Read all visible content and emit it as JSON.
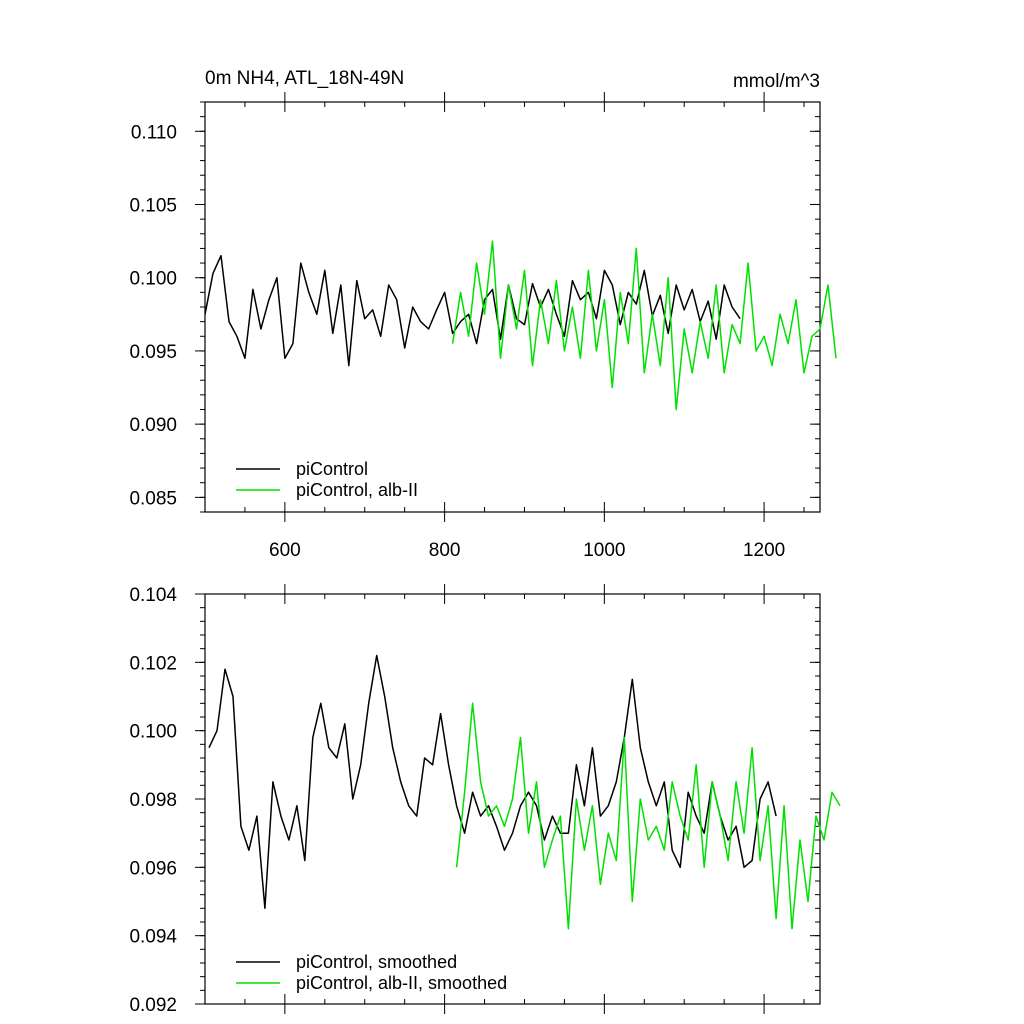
{
  "chart_data": [
    {
      "type": "line",
      "title": "0m NH4, ATL_18N-49N",
      "units": "mmol/m^3",
      "xlabel": "",
      "ylabel": "",
      "xlim": [
        500,
        1270
      ],
      "ylim": [
        0.084,
        0.112
      ],
      "xticks": [
        600,
        800,
        1000,
        1200
      ],
      "xtick_labels": [
        "600",
        "800",
        "1000",
        "1200"
      ],
      "yticks": [
        0.085,
        0.09,
        0.095,
        0.1,
        0.105,
        0.11
      ],
      "ytick_labels": [
        "0.085",
        "0.090",
        "0.095",
        "0.100",
        "0.105",
        "0.110"
      ],
      "legend_position": "bottom-left",
      "series": [
        {
          "name": "piControl",
          "color": "#000000",
          "x_start": 500,
          "x_step": 10,
          "values": [
            0.0975,
            0.1003,
            0.1015,
            0.097,
            0.096,
            0.0945,
            0.0992,
            0.0965,
            0.0985,
            0.1,
            0.0945,
            0.0955,
            0.101,
            0.099,
            0.0975,
            0.1005,
            0.0962,
            0.0995,
            0.094,
            0.0998,
            0.0972,
            0.0978,
            0.096,
            0.0995,
            0.0985,
            0.0952,
            0.098,
            0.097,
            0.0965,
            0.0978,
            0.099,
            0.0962,
            0.097,
            0.0975,
            0.0955,
            0.0985,
            0.0992,
            0.0958,
            0.0995,
            0.0972,
            0.0968,
            0.0996,
            0.098,
            0.0992,
            0.0975,
            0.096,
            0.0998,
            0.0985,
            0.099,
            0.0972,
            0.1005,
            0.0995,
            0.0968,
            0.099,
            0.0982,
            0.1005,
            0.0974,
            0.0988,
            0.0962,
            0.0995,
            0.0978,
            0.0992,
            0.097,
            0.0984,
            0.0958,
            0.0995,
            0.098,
            0.0972
          ]
        },
        {
          "name": "piControl, alb-II",
          "color": "#00e000",
          "x_start": 810,
          "x_step": 10,
          "values": [
            0.0955,
            0.099,
            0.096,
            0.101,
            0.0975,
            0.1025,
            0.0945,
            0.0995,
            0.0965,
            0.1005,
            0.094,
            0.0985,
            0.0955,
            0.0998,
            0.095,
            0.098,
            0.0945,
            0.1005,
            0.095,
            0.0985,
            0.0925,
            0.099,
            0.0955,
            0.102,
            0.0935,
            0.0975,
            0.094,
            0.1,
            0.091,
            0.0965,
            0.0935,
            0.097,
            0.0945,
            0.0995,
            0.0935,
            0.0968,
            0.0955,
            0.101,
            0.095,
            0.096,
            0.094,
            0.0975,
            0.0955,
            0.0985,
            0.0935,
            0.096,
            0.0965,
            0.0995,
            0.0945
          ]
        }
      ]
    },
    {
      "type": "line",
      "title": "",
      "units": "",
      "xlabel": "",
      "ylabel": "",
      "xlim": [
        500,
        1270
      ],
      "ylim": [
        0.092,
        0.104
      ],
      "xticks": [
        600,
        800,
        1000,
        1200
      ],
      "xtick_labels": [],
      "yticks": [
        0.092,
        0.094,
        0.096,
        0.098,
        0.1,
        0.102,
        0.104
      ],
      "ytick_labels": [
        "0.092",
        "0.094",
        "0.096",
        "0.098",
        "0.100",
        "0.102",
        "0.104"
      ],
      "legend_position": "bottom-left",
      "series": [
        {
          "name": "piControl, smoothed",
          "color": "#000000",
          "x_start": 505,
          "x_step": 10,
          "values": [
            0.0995,
            0.1,
            0.1018,
            0.101,
            0.0972,
            0.0965,
            0.0975,
            0.0948,
            0.0985,
            0.0975,
            0.0968,
            0.0978,
            0.0962,
            0.0998,
            0.1008,
            0.0995,
            0.0992,
            0.1002,
            0.098,
            0.099,
            0.1008,
            0.1022,
            0.101,
            0.0995,
            0.0985,
            0.0978,
            0.0975,
            0.0992,
            0.099,
            0.1005,
            0.099,
            0.0978,
            0.097,
            0.0982,
            0.0975,
            0.0978,
            0.0972,
            0.0965,
            0.097,
            0.0978,
            0.0982,
            0.0978,
            0.0968,
            0.0975,
            0.097,
            0.097,
            0.099,
            0.0978,
            0.0995,
            0.0975,
            0.0978,
            0.0985,
            0.0998,
            0.1015,
            0.0995,
            0.0985,
            0.0978,
            0.0985,
            0.0965,
            0.096,
            0.0982,
            0.0975,
            0.097,
            0.0985,
            0.0975,
            0.0968,
            0.0972,
            0.096,
            0.0962,
            0.098,
            0.0985,
            0.0975
          ]
        },
        {
          "name": "piControl, alb-II, smoothed",
          "color": "#00e000",
          "x_start": 815,
          "x_step": 10,
          "values": [
            0.096,
            0.0982,
            0.1008,
            0.0985,
            0.0975,
            0.0978,
            0.0972,
            0.098,
            0.0998,
            0.097,
            0.0985,
            0.096,
            0.0968,
            0.0975,
            0.0942,
            0.098,
            0.0965,
            0.0978,
            0.0955,
            0.097,
            0.0962,
            0.0998,
            0.095,
            0.098,
            0.0968,
            0.0972,
            0.0965,
            0.0985,
            0.0975,
            0.0968,
            0.099,
            0.096,
            0.0985,
            0.0975,
            0.0962,
            0.0985,
            0.097,
            0.0995,
            0.0962,
            0.0978,
            0.0945,
            0.0978,
            0.0942,
            0.0968,
            0.095,
            0.0975,
            0.0968,
            0.0982,
            0.0978
          ]
        }
      ]
    }
  ]
}
